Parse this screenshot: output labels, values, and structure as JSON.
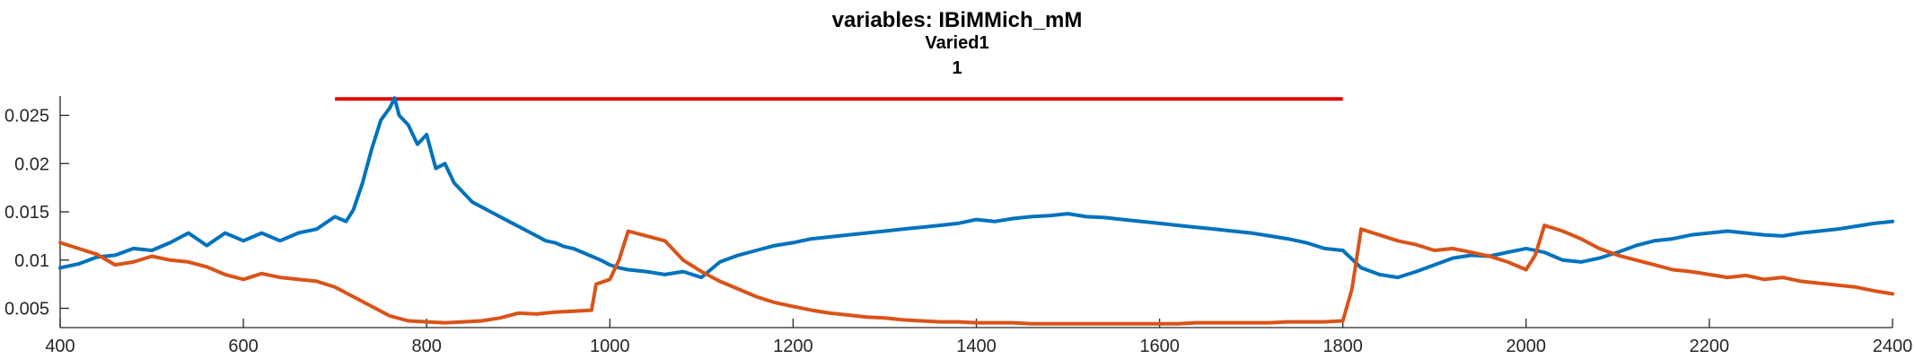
{
  "chart_data": {
    "type": "line",
    "title": "variables: IBiMMich_mM",
    "subtitle_lines": [
      "Varied1",
      "1"
    ],
    "xlabel": "",
    "ylabel": "",
    "xlim": [
      400,
      2400
    ],
    "ylim": [
      0.003,
      0.027
    ],
    "x_ticks": [
      400,
      600,
      800,
      1000,
      1200,
      1400,
      1600,
      1800,
      2000,
      2200,
      2400
    ],
    "x_tick_labels": [
      "400",
      "600",
      "800",
      "1000",
      "1200",
      "1400",
      "1600",
      "1800",
      "2000",
      "2200",
      "2400"
    ],
    "y_ticks": [
      0.005,
      0.01,
      0.015,
      0.02,
      0.025
    ],
    "y_tick_labels": [
      "0.005",
      "0.01",
      "0.015",
      "0.02",
      "0.025"
    ],
    "grid": false,
    "legend": "none",
    "series": [
      {
        "color": "#0072BD",
        "x": [
          400,
          420,
          440,
          460,
          480,
          500,
          520,
          540,
          560,
          580,
          600,
          620,
          640,
          660,
          680,
          700,
          712,
          720,
          730,
          740,
          750,
          760,
          765,
          770,
          780,
          790,
          800,
          810,
          820,
          830,
          840,
          850,
          860,
          870,
          880,
          890,
          900,
          910,
          920,
          930,
          940,
          950,
          960,
          970,
          980,
          990,
          1000,
          1010,
          1020,
          1040,
          1060,
          1080,
          1100,
          1120,
          1140,
          1160,
          1180,
          1200,
          1220,
          1240,
          1260,
          1280,
          1300,
          1320,
          1340,
          1360,
          1380,
          1400,
          1420,
          1440,
          1460,
          1480,
          1500,
          1520,
          1540,
          1560,
          1580,
          1600,
          1620,
          1640,
          1660,
          1680,
          1700,
          1720,
          1740,
          1760,
          1780,
          1800,
          1820,
          1840,
          1860,
          1880,
          1900,
          1920,
          1940,
          1960,
          1980,
          2000,
          2020,
          2040,
          2060,
          2080,
          2100,
          2120,
          2140,
          2160,
          2180,
          2200,
          2220,
          2240,
          2260,
          2280,
          2300,
          2320,
          2340,
          2360,
          2380,
          2400
        ],
        "y": [
          0.0092,
          0.0096,
          0.0103,
          0.0105,
          0.0112,
          0.011,
          0.0118,
          0.0128,
          0.0115,
          0.0128,
          0.012,
          0.0128,
          0.012,
          0.0128,
          0.0132,
          0.0145,
          0.014,
          0.0152,
          0.018,
          0.0215,
          0.0245,
          0.0258,
          0.0268,
          0.025,
          0.024,
          0.022,
          0.023,
          0.0195,
          0.02,
          0.018,
          0.017,
          0.016,
          0.0155,
          0.015,
          0.0145,
          0.014,
          0.0135,
          0.013,
          0.0125,
          0.012,
          0.0118,
          0.0114,
          0.0112,
          0.0108,
          0.0104,
          0.01,
          0.0095,
          0.0092,
          0.009,
          0.0088,
          0.0085,
          0.0088,
          0.0082,
          0.0098,
          0.0105,
          0.011,
          0.0115,
          0.0118,
          0.0122,
          0.0124,
          0.0126,
          0.0128,
          0.013,
          0.0132,
          0.0134,
          0.0136,
          0.0138,
          0.0142,
          0.014,
          0.0143,
          0.0145,
          0.0146,
          0.0148,
          0.0145,
          0.0144,
          0.0142,
          0.014,
          0.0138,
          0.0136,
          0.0134,
          0.0132,
          0.013,
          0.0128,
          0.0125,
          0.0122,
          0.0118,
          0.0112,
          0.011,
          0.0092,
          0.0085,
          0.0082,
          0.0088,
          0.0095,
          0.0102,
          0.0105,
          0.0104,
          0.0108,
          0.0112,
          0.0108,
          0.01,
          0.0098,
          0.0102,
          0.0108,
          0.0115,
          0.012,
          0.0122,
          0.0126,
          0.0128,
          0.013,
          0.0128,
          0.0126,
          0.0125,
          0.0128,
          0.013,
          0.0132,
          0.0135,
          0.0138,
          0.014
        ]
      },
      {
        "color": "#D95319",
        "x": [
          400,
          420,
          440,
          460,
          480,
          500,
          520,
          540,
          560,
          580,
          600,
          620,
          640,
          660,
          680,
          700,
          720,
          740,
          760,
          780,
          800,
          820,
          840,
          860,
          880,
          900,
          920,
          940,
          960,
          980,
          985,
          1000,
          1010,
          1020,
          1040,
          1060,
          1080,
          1100,
          1120,
          1140,
          1160,
          1180,
          1200,
          1220,
          1240,
          1260,
          1280,
          1300,
          1320,
          1340,
          1360,
          1380,
          1400,
          1420,
          1440,
          1460,
          1480,
          1500,
          1520,
          1540,
          1560,
          1580,
          1600,
          1620,
          1640,
          1660,
          1680,
          1700,
          1720,
          1740,
          1760,
          1780,
          1800,
          1810,
          1820,
          1840,
          1860,
          1880,
          1900,
          1920,
          1940,
          1960,
          1980,
          2000,
          2010,
          2020,
          2040,
          2060,
          2080,
          2100,
          2120,
          2140,
          2160,
          2180,
          2200,
          2220,
          2240,
          2260,
          2280,
          2300,
          2320,
          2340,
          2360,
          2380,
          2400
        ],
        "y": [
          0.0118,
          0.0112,
          0.0106,
          0.0095,
          0.0098,
          0.0104,
          0.01,
          0.0098,
          0.0093,
          0.0085,
          0.008,
          0.0086,
          0.0082,
          0.008,
          0.0078,
          0.0072,
          0.0062,
          0.0052,
          0.0042,
          0.0037,
          0.0036,
          0.0035,
          0.0036,
          0.0037,
          0.004,
          0.0045,
          0.0044,
          0.0046,
          0.0047,
          0.0048,
          0.0075,
          0.008,
          0.01,
          0.013,
          0.0125,
          0.012,
          0.01,
          0.0088,
          0.0078,
          0.007,
          0.0062,
          0.0056,
          0.0052,
          0.0048,
          0.0045,
          0.0043,
          0.0041,
          0.004,
          0.0038,
          0.0037,
          0.0036,
          0.0036,
          0.0035,
          0.0035,
          0.0035,
          0.0034,
          0.0034,
          0.0034,
          0.0034,
          0.0034,
          0.0034,
          0.0034,
          0.0034,
          0.0034,
          0.0035,
          0.0035,
          0.0035,
          0.0035,
          0.0035,
          0.0036,
          0.0036,
          0.0036,
          0.0037,
          0.007,
          0.0132,
          0.0126,
          0.012,
          0.0116,
          0.011,
          0.0112,
          0.0108,
          0.0104,
          0.0098,
          0.009,
          0.0105,
          0.0136,
          0.013,
          0.0122,
          0.0112,
          0.0105,
          0.01,
          0.0095,
          0.009,
          0.0088,
          0.0085,
          0.0082,
          0.0084,
          0.008,
          0.0082,
          0.0078,
          0.0076,
          0.0074,
          0.0072,
          0.0068,
          0.0065
        ]
      }
    ],
    "annotations": [
      {
        "type": "hline",
        "color": "#E00000",
        "y": 0.0267,
        "x_start": 700,
        "x_end": 1800
      }
    ]
  }
}
